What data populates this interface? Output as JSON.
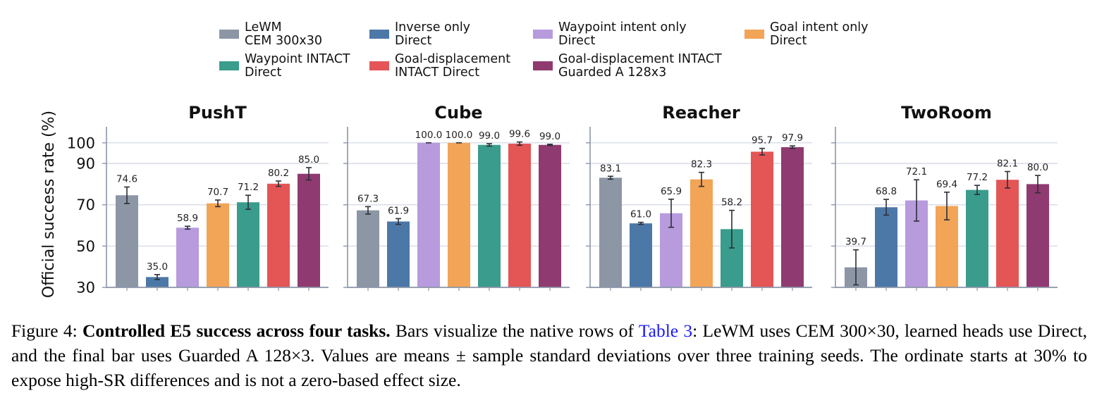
{
  "figure": {
    "ylabel": "Official success rate (%)",
    "legend": [
      {
        "line1": "LeWM",
        "line2": "CEM 300x30",
        "color": "#8c96a5"
      },
      {
        "line1": "Inverse only",
        "line2": "Direct",
        "color": "#4c78a8"
      },
      {
        "line1": "Waypoint intent only",
        "line2": "Direct",
        "color": "#b79bdd"
      },
      {
        "line1": "Goal intent only",
        "line2": "Direct",
        "color": "#f2a457"
      },
      {
        "line1": "Waypoint INTACT",
        "line2": "Direct",
        "color": "#3a9c8c"
      },
      {
        "line1": "Goal-displacement",
        "line2": "INTACT Direct",
        "color": "#e45556"
      },
      {
        "line1": "Goal-displacement INTACT",
        "line2": "Guarded A 128x3",
        "color": "#8f3a70"
      }
    ],
    "legend_placement": "top-center"
  },
  "chart_data": {
    "type": "bar",
    "ylabel": "Official success rate (%)",
    "ylim": [
      30,
      103
    ],
    "yticks": [
      30,
      50,
      70,
      90,
      100
    ],
    "grid": true,
    "series_names": [
      "LeWM CEM 300x30",
      "Inverse only Direct",
      "Waypoint intent only Direct",
      "Goal intent only Direct",
      "Waypoint INTACT Direct",
      "Goal-displacement INTACT Direct",
      "Goal-displacement INTACT Guarded A 128x3"
    ],
    "panels": [
      {
        "title": "PushT",
        "values": [
          74.6,
          35.0,
          58.9,
          70.7,
          71.2,
          80.2,
          85.0
        ],
        "errors": [
          4.0,
          1.2,
          0.7,
          1.6,
          3.4,
          1.3,
          3.0
        ]
      },
      {
        "title": "Cube",
        "values": [
          67.3,
          61.9,
          100.0,
          100.0,
          99.0,
          99.6,
          99.0
        ],
        "errors": [
          1.8,
          1.4,
          0.0,
          0.0,
          0.6,
          0.8,
          0.3
        ]
      },
      {
        "title": "Reacher",
        "values": [
          83.1,
          61.0,
          65.9,
          82.3,
          58.2,
          95.7,
          97.9
        ],
        "errors": [
          0.7,
          0.5,
          6.8,
          3.4,
          9.1,
          1.6,
          0.6
        ]
      },
      {
        "title": "TwoRoom",
        "values": [
          39.7,
          68.8,
          72.1,
          69.4,
          77.2,
          82.1,
          80.0
        ],
        "errors": [
          8.5,
          3.8,
          10.0,
          6.7,
          2.2,
          4.0,
          4.2
        ]
      }
    ]
  },
  "caption": {
    "label": "Figure 4:",
    "bold": "Controlled E5 success across four tasks.",
    "text_before_link": " Bars visualize the native rows of ",
    "link": "Table 3",
    "text_after_link": ": LeWM uses CEM 300×30, learned heads use Direct, and the final bar uses Guarded A 128×3. Values are means ± sample standard deviations over three training seeds. The ordinate starts at 30% to expose high-SR differences and is not a zero-based effect size."
  }
}
